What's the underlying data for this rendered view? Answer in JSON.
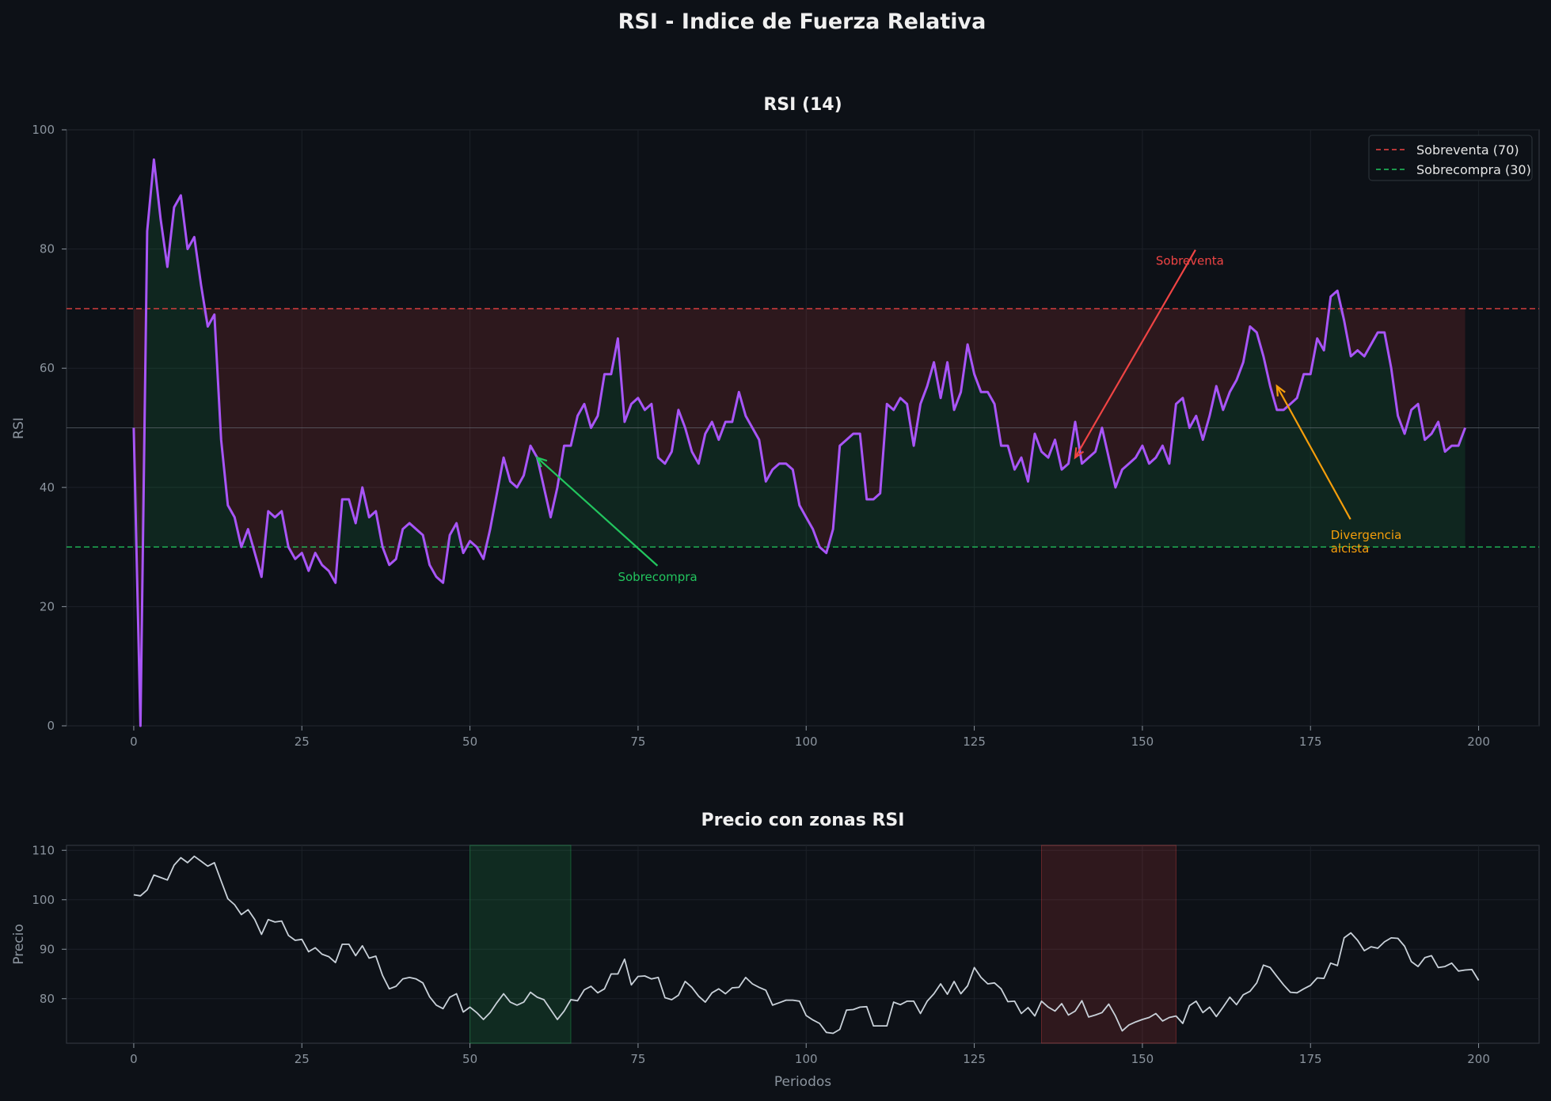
{
  "figure_title": "RSI - Indice de Fuerza Relativa",
  "colors": {
    "background": "#0d1117",
    "rsi_line": "#a855f7",
    "price_line": "#c9d1d9",
    "overbought": "#ef4444",
    "oversold": "#22c55e",
    "divergence": "#f59e0b",
    "text": "#f0f0f0",
    "tick": "#8b949e"
  },
  "chart_data": [
    {
      "type": "line",
      "title": "RSI (14)",
      "xlabel": "",
      "ylabel": "RSI",
      "xlim": [
        -10,
        209
      ],
      "ylim": [
        0,
        100
      ],
      "xticks": [
        0,
        25,
        50,
        75,
        100,
        125,
        150,
        175,
        200
      ],
      "yticks": [
        0,
        20,
        40,
        60,
        80,
        100
      ],
      "reference_lines": [
        {
          "y": 70,
          "label": "Sobreventa (70)",
          "style": "dashed",
          "color": "#ef4444"
        },
        {
          "y": 30,
          "label": "Sobrecompra (30)",
          "style": "dashed",
          "color": "#22c55e"
        },
        {
          "y": 50,
          "label": "",
          "style": "solid",
          "color": "#6e7681"
        }
      ],
      "legend": {
        "position": "top-right",
        "entries": [
          "Sobreventa (70)",
          "Sobrecompra (30)"
        ]
      },
      "grid": true,
      "series": [
        {
          "name": "RSI",
          "x_start": 0,
          "values": [
            50,
            0,
            83,
            95,
            85,
            77,
            87,
            89,
            80,
            82,
            74,
            67,
            69,
            48,
            37,
            35,
            30,
            33,
            29,
            25,
            36,
            35,
            36,
            30,
            28,
            29,
            26,
            29,
            27,
            26,
            24,
            38,
            38,
            34,
            40,
            35,
            36,
            30,
            27,
            28,
            33,
            34,
            33,
            32,
            27,
            25,
            24,
            32,
            34,
            29,
            31,
            30,
            28,
            33,
            39,
            45,
            41,
            40,
            42,
            47,
            45,
            40,
            35,
            40,
            47,
            47,
            52,
            54,
            50,
            52,
            59,
            59,
            65,
            51,
            54,
            55,
            53,
            54,
            45,
            44,
            46,
            53,
            50,
            46,
            44,
            49,
            51,
            48,
            51,
            51,
            56,
            52,
            50,
            48,
            41,
            43,
            44,
            44,
            43,
            37,
            35,
            33,
            30,
            29,
            33,
            47,
            48,
            49,
            49,
            38,
            38,
            39,
            54,
            53,
            55,
            54,
            47,
            54,
            57,
            61,
            55,
            61,
            53,
            56,
            64,
            59,
            56,
            56,
            54,
            47,
            47,
            43,
            45,
            41,
            49,
            46,
            45,
            48,
            43,
            44,
            51,
            44,
            45,
            46,
            50,
            45,
            40,
            43,
            44,
            45,
            47,
            44,
            45,
            47,
            44,
            54,
            55,
            50,
            52,
            48,
            52,
            57,
            53,
            56,
            58,
            61,
            67,
            66,
            62,
            57,
            53,
            53,
            54,
            55,
            59,
            59,
            65,
            63,
            72,
            73,
            68,
            62,
            63,
            62,
            64,
            66,
            66,
            60,
            52,
            49,
            53,
            54,
            48,
            49,
            51,
            46,
            47,
            47,
            50
          ]
        }
      ],
      "annotations": [
        {
          "text": "Sobreventa",
          "x": 140,
          "y": 45,
          "text_x": 152,
          "text_y": 78,
          "color": "#ef4444"
        },
        {
          "text": "Sobrecompra",
          "x": 60,
          "y": 45,
          "text_x": 72,
          "text_y": 25,
          "color": "#22c55e"
        },
        {
          "text_lines": [
            "Divergencia",
            "alcista"
          ],
          "x": 170,
          "y": 57,
          "text_x": 178,
          "text_y": 32,
          "color": "#f59e0b"
        }
      ]
    },
    {
      "type": "line",
      "title": "Precio con zonas RSI",
      "xlabel": "Periodos",
      "ylabel": "Precio",
      "xlim": [
        -10,
        209
      ],
      "ylim": [
        71,
        111
      ],
      "xticks": [
        0,
        25,
        50,
        75,
        100,
        125,
        150,
        175,
        200
      ],
      "yticks": [
        80,
        90,
        100,
        110
      ],
      "grid": true,
      "zones": [
        {
          "x_start": 50,
          "x_end": 65,
          "color": "#22c55e",
          "kind": "oversold"
        },
        {
          "x_start": 135,
          "x_end": 155,
          "color": "#ef4444",
          "kind": "overbought"
        }
      ],
      "series": [
        {
          "name": "Precio",
          "x_start": 0,
          "values": [
            101,
            100.8,
            102,
            105,
            104.5,
            104,
            107,
            108.5,
            107.5,
            108.8,
            107.8,
            106.8,
            107.5,
            103.8,
            100.2,
            99,
            97,
            98,
            96,
            93,
            96,
            95.5,
            95.7,
            92.8,
            91.8,
            92,
            89.5,
            90.3,
            89,
            88.5,
            87.3,
            91,
            91,
            88.7,
            90.7,
            88.2,
            88.6,
            84.7,
            82,
            82.5,
            84,
            84.3,
            84,
            83.2,
            80.4,
            78.7,
            78,
            80.3,
            81,
            77.3,
            78.3,
            77.2,
            75.8,
            77.2,
            79.2,
            81,
            79.3,
            78.7,
            79.3,
            81.3,
            80.3,
            79.8,
            77.8,
            75.8,
            77.5,
            79.8,
            79.6,
            81.8,
            82.5,
            81.2,
            82,
            85,
            85,
            88,
            82.8,
            84.5,
            84.6,
            84,
            84.3,
            80.2,
            79.8,
            80.7,
            83.5,
            82.3,
            80.5,
            79.3,
            81.2,
            82,
            81,
            82.2,
            82.3,
            84.3,
            83,
            82.3,
            81.7,
            78.7,
            79.2,
            79.7,
            79.7,
            79.5,
            76.6,
            75.7,
            75,
            73.2,
            73,
            73.8,
            77.7,
            77.8,
            78.3,
            78.4,
            74.5,
            74.5,
            74.5,
            79.3,
            78.8,
            79.5,
            79.5,
            77,
            79.5,
            81,
            83,
            80.9,
            83.5,
            81,
            82.6,
            86.3,
            84.3,
            83,
            83.2,
            82,
            79.4,
            79.5,
            77,
            78.2,
            76.5,
            79.5,
            78.3,
            77.5,
            79,
            76.7,
            77.5,
            79.6,
            76.3,
            76.7,
            77.2,
            78.9,
            76.5,
            73.5,
            74.7,
            75.3,
            75.8,
            76.2,
            77,
            75.5,
            76.2,
            76.5,
            75,
            78.6,
            79.5,
            77.2,
            78.3,
            76.4,
            78.3,
            80.3,
            78.8,
            80.8,
            81.5,
            83.2,
            86.8,
            86.3,
            84.5,
            82.8,
            81.3,
            81.2,
            82,
            82.7,
            84.2,
            84.1,
            87.2,
            86.7,
            92.3,
            93.3,
            91.8,
            89.7,
            90.5,
            90.2,
            91.5,
            92.3,
            92.2,
            90.6,
            87.5,
            86.5,
            88.3,
            88.7,
            86.3,
            86.5,
            87.2,
            85.6,
            85.8,
            85.9,
            83.7
          ]
        }
      ]
    }
  ]
}
